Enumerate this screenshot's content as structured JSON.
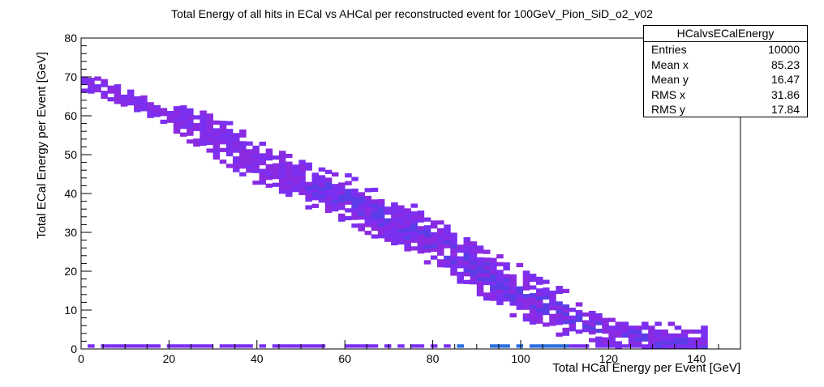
{
  "chart_data": {
    "type": "heatmap",
    "title": "Total Energy of all hits in ECal vs AHCal per reconstructed event for 100GeV_Pion_SiD_o2_v02",
    "xlabel": "Total HCal Energy per Event [GeV]",
    "ylabel": "Total ECal Energy per Event [GeV]",
    "xlim": [
      0,
      150
    ],
    "ylim": [
      0,
      80
    ],
    "x_ticks": [
      0,
      20,
      40,
      60,
      80,
      100,
      120,
      140
    ],
    "y_ticks": [
      0,
      10,
      20,
      30,
      40,
      50,
      60,
      70,
      80
    ],
    "grid": false,
    "band": {
      "description": "diagonal anticorrelation band",
      "points": [
        [
          1,
          68
        ],
        [
          10,
          64
        ],
        [
          20,
          59
        ],
        [
          30,
          54
        ],
        [
          40,
          47
        ],
        [
          50,
          42
        ],
        [
          60,
          38
        ],
        [
          70,
          32
        ],
        [
          80,
          27
        ],
        [
          90,
          20
        ],
        [
          100,
          13
        ],
        [
          110,
          8
        ],
        [
          120,
          4
        ],
        [
          130,
          1.5
        ],
        [
          140,
          0.5
        ]
      ],
      "color": "#7b2ff0"
    },
    "bottom_row": {
      "y": 0.6,
      "x_range": [
        0,
        140
      ],
      "color": "#7b2ff0",
      "dense_color": "#2a6fe0"
    },
    "stats": {
      "name": "HCalvsECalEnergy",
      "entries": [
        {
          "label": "Entries",
          "value": "10000"
        },
        {
          "label": "Mean x",
          "value": "85.23"
        },
        {
          "label": "Mean y",
          "value": "16.47"
        },
        {
          "label": "RMS x",
          "value": "31.86"
        },
        {
          "label": "RMS y",
          "value": "17.84"
        }
      ]
    }
  }
}
